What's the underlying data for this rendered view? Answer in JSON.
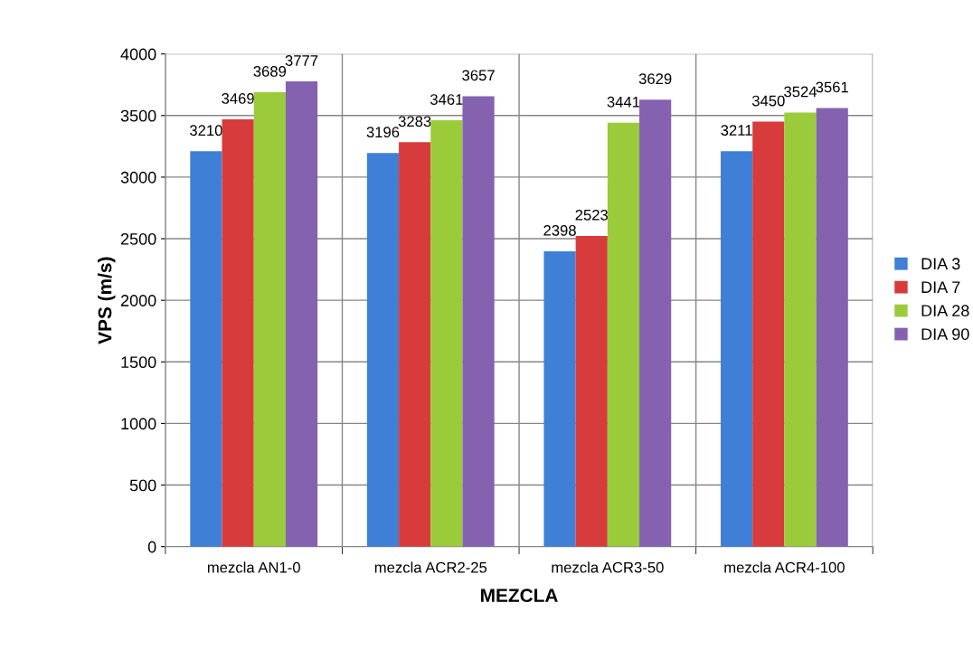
{
  "chart_data": {
    "type": "bar",
    "xlabel": "MEZCLA",
    "ylabel": "VPS (m/s)",
    "categories": [
      "mezcla AN1-0",
      "mezcla ACR2-25",
      "mezcla ACR3-50",
      "mezcla ACR4-100"
    ],
    "series": [
      {
        "name": "DIA 3",
        "color": "#3f7fd6",
        "values": [
          3210,
          3196,
          2398,
          3211
        ]
      },
      {
        "name": "DIA 7",
        "color": "#d83b3b",
        "values": [
          3469,
          3283,
          2523,
          3450
        ]
      },
      {
        "name": "DIA 28",
        "color": "#9bcb3b",
        "values": [
          3689,
          3461,
          3441,
          3524
        ]
      },
      {
        "name": "DIA 90",
        "color": "#8462b0",
        "values": [
          3777,
          3657,
          3629,
          3561
        ]
      }
    ],
    "ylim": [
      0,
      4000
    ],
    "yticks": [
      0,
      500,
      1000,
      1500,
      2000,
      2500,
      3000,
      3500,
      4000
    ],
    "grid": true,
    "legend": "right",
    "data_labels": true
  }
}
